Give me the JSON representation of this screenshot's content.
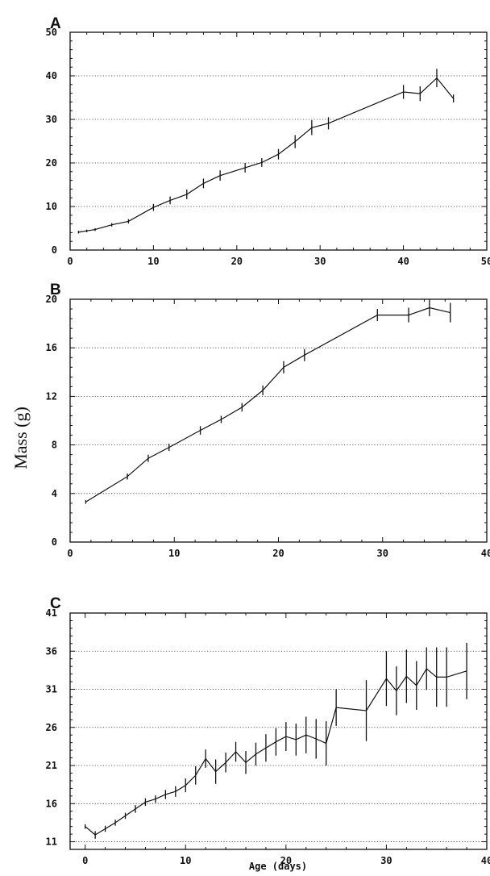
{
  "figure": {
    "ylabel": "Mass (g)",
    "xlabel": "Age (days)"
  },
  "chart_data": [
    {
      "type": "line",
      "panel": "A",
      "xlim": [
        0,
        50
      ],
      "ylim": [
        0,
        50
      ],
      "xticks": [
        0,
        10,
        20,
        30,
        40,
        50
      ],
      "yticks": [
        0,
        10,
        20,
        30,
        40,
        50
      ],
      "grid": "horizontal dotted",
      "series": [
        {
          "x": [
            1,
            2,
            3,
            5,
            7,
            10,
            12,
            14,
            16,
            18,
            21,
            23,
            25,
            27,
            29,
            31,
            40,
            42,
            44,
            46
          ],
          "y": [
            4.1,
            4.4,
            4.7,
            5.8,
            6.6,
            9.8,
            11.4,
            12.8,
            15.3,
            17.1,
            18.9,
            20.1,
            22.0,
            24.9,
            28.1,
            29.1,
            36.3,
            35.9,
            39.5,
            34.8
          ],
          "err": [
            0.3,
            0.3,
            0.3,
            0.4,
            0.5,
            0.8,
            0.9,
            1.1,
            1.1,
            1.2,
            1.1,
            1.0,
            1.2,
            1.5,
            1.7,
            1.4,
            1.6,
            1.7,
            2.1,
            0.9
          ]
        }
      ]
    },
    {
      "type": "line",
      "panel": "B",
      "xlim": [
        0,
        40
      ],
      "ylim": [
        0,
        20
      ],
      "xticks": [
        0,
        10,
        20,
        30,
        40
      ],
      "yticks": [
        0,
        4,
        8,
        12,
        16,
        20
      ],
      "grid": "horizontal dotted",
      "series": [
        {
          "x": [
            1.5,
            5.5,
            7.5,
            9.5,
            12.5,
            14.5,
            16.5,
            18.5,
            20.5,
            22.5,
            29.5,
            32.5,
            34.5,
            36.5
          ],
          "y": [
            3.3,
            5.4,
            6.9,
            7.8,
            9.2,
            10.1,
            11.1,
            12.5,
            14.4,
            15.4,
            18.7,
            18.7,
            19.3,
            18.9
          ],
          "err": [
            0.15,
            0.25,
            0.3,
            0.3,
            0.35,
            0.3,
            0.35,
            0.4,
            0.5,
            0.5,
            0.5,
            0.6,
            0.7,
            0.8
          ]
        }
      ]
    },
    {
      "type": "line",
      "panel": "C",
      "xlim": [
        -1.5,
        40
      ],
      "ylim": [
        10,
        41
      ],
      "xticks": [
        0,
        10,
        20,
        30,
        40
      ],
      "yticks": [
        11,
        16,
        21,
        26,
        31,
        36,
        41
      ],
      "grid": "horizontal dotted",
      "series": [
        {
          "x": [
            0,
            1,
            2,
            3,
            4,
            5,
            6,
            7,
            8,
            9,
            10,
            11,
            12,
            13,
            14,
            15,
            16,
            17,
            18,
            19,
            20,
            21,
            22,
            23,
            24,
            25,
            28,
            30,
            31,
            32,
            33,
            34,
            35,
            36,
            38
          ],
          "y": [
            13.0,
            11.9,
            12.7,
            13.5,
            14.4,
            15.3,
            16.2,
            16.6,
            17.2,
            17.6,
            18.4,
            19.7,
            21.9,
            20.2,
            21.4,
            22.8,
            21.4,
            22.5,
            23.3,
            24.1,
            24.8,
            24.4,
            25.0,
            24.5,
            23.9,
            28.6,
            28.2,
            32.4,
            30.8,
            32.7,
            31.5,
            33.7,
            32.6,
            32.6,
            33.4
          ],
          "err": [
            0.3,
            0.5,
            0.4,
            0.4,
            0.4,
            0.5,
            0.5,
            0.5,
            0.6,
            0.7,
            0.9,
            1.2,
            1.2,
            1.6,
            1.3,
            1.3,
            1.5,
            1.5,
            1.8,
            1.8,
            1.9,
            2.1,
            2.4,
            2.6,
            2.9,
            2.4,
            4.0,
            3.6,
            3.2,
            3.5,
            3.2,
            2.8,
            3.9,
            3.9,
            3.7
          ]
        }
      ]
    }
  ]
}
